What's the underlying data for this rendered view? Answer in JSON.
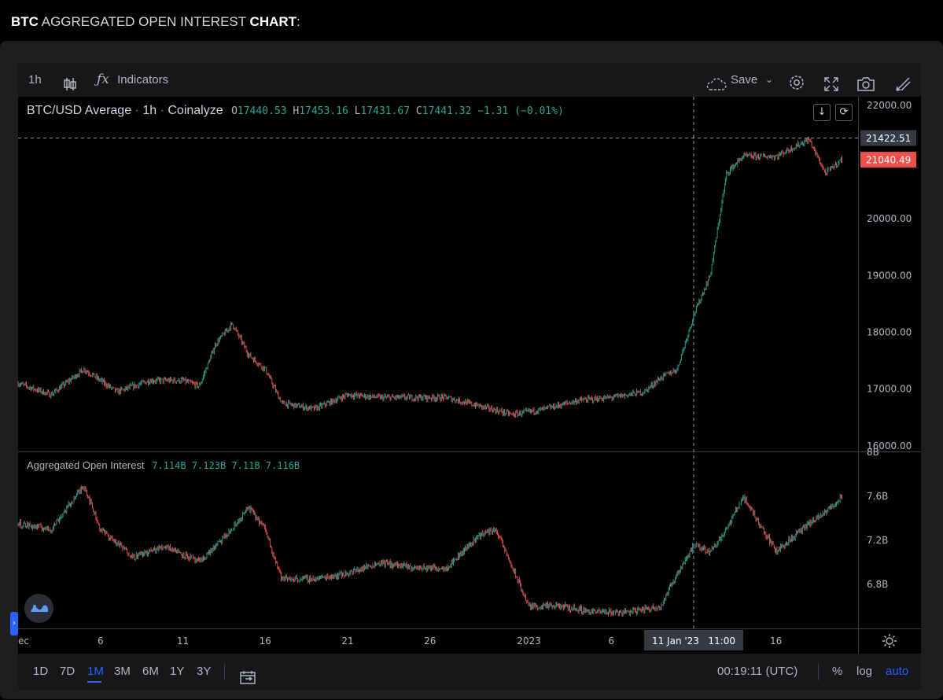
{
  "heading": {
    "part1": "BTC",
    "part2": " AGGREGATED OPEN INTEREST ",
    "part3": "CHART",
    "part4": ":"
  },
  "toolbar": {
    "interval": "1h",
    "indicators_label": "Indicators",
    "save_label": "Save"
  },
  "legend": {
    "symbol": "BTC/USD Average",
    "interval": "1h",
    "source": "Coinalyze",
    "o_label": "O",
    "o": "17440.53",
    "h_label": "H",
    "h": "17453.16",
    "l_label": "L",
    "l": "17431.67",
    "c_label": "C",
    "c": "17441.32",
    "change": "−1.31 (−0.01%)"
  },
  "oi_legend": {
    "name": "Aggregated Open Interest",
    "v1": "7.114B",
    "v2": "7.123B",
    "v3": "7.11B",
    "v4": "7.116B"
  },
  "crosshair": {
    "price": "21422.51",
    "time": "11 Jan '23   11:00"
  },
  "last_price": {
    "value": "21040.49",
    "color": "#f0504a"
  },
  "colors": {
    "up": "#26a69a",
    "down": "#ef5350",
    "background": "#000000",
    "grid": "#2a2e39"
  },
  "bottombar": {
    "ranges": [
      "1D",
      "7D",
      "1M",
      "3M",
      "6M",
      "1Y",
      "3Y"
    ],
    "active_range": "1M",
    "clock": "00:19:11 (UTC)",
    "percent": "%",
    "log": "log",
    "auto": "auto"
  },
  "chart_data": [
    {
      "type": "candlestick",
      "title": "BTC/USD Average · 1h · Coinalyze",
      "x_ticks": [
        "ec",
        "6",
        "11",
        "16",
        "21",
        "26",
        "2023",
        "6",
        "16"
      ],
      "y_ticks": [
        "22000.00",
        "20000.00",
        "19000.00",
        "18000.00",
        "17000.00",
        "16000.00"
      ],
      "ylim": [
        15900,
        22150
      ],
      "series": [
        {
          "x": [
            "Dec 1",
            "Dec 3",
            "Dec 5",
            "Dec 7",
            "Dec 9",
            "Dec 11",
            "Dec 12",
            "Dec 13",
            "Dec 14",
            "Dec 15",
            "Dec 16",
            "Dec 17",
            "Dec 19",
            "Dec 21",
            "Dec 23",
            "Dec 25",
            "Dec 27",
            "Dec 29",
            "Dec 31",
            "Jan 2",
            "Jan 4",
            "Jan 6",
            "Jan 8",
            "Jan 9",
            "Jan 10",
            "Jan 11",
            "Jan 12",
            "Jan 13",
            "Jan 14",
            "Jan 16",
            "Jan 18",
            "Jan 19",
            "Jan 20"
          ],
          "values": [
            17100,
            16900,
            17350,
            16950,
            17150,
            17150,
            17050,
            17800,
            18150,
            17600,
            17350,
            16750,
            16650,
            16900,
            16850,
            16850,
            16850,
            16700,
            16550,
            16650,
            16800,
            16850,
            16950,
            17200,
            17350,
            18300,
            19000,
            20800,
            21100,
            21100,
            21400,
            20800,
            21050
          ]
        }
      ]
    },
    {
      "type": "line",
      "title": "Aggregated Open Interest",
      "y_ticks": [
        "8B",
        "7.6B",
        "7.2B",
        "6.8B"
      ],
      "ylim": [
        6.4,
        8.0
      ],
      "series": [
        {
          "name": "Aggregated Open Interest",
          "x": [
            "Dec 1",
            "Dec 3",
            "Dec 5",
            "Dec 6",
            "Dec 8",
            "Dec 10",
            "Dec 12",
            "Dec 14",
            "Dec 15",
            "Dec 16",
            "Dec 17",
            "Dec 19",
            "Dec 21",
            "Dec 23",
            "Dec 25",
            "Dec 27",
            "Dec 29",
            "Dec 30",
            "Jan 1",
            "Jan 3",
            "Jan 5",
            "Jan 7",
            "Jan 9",
            "Jan 10",
            "Jan 11",
            "Jan 12",
            "Jan 13",
            "Jan 14",
            "Jan 16",
            "Jan 18",
            "Jan 19",
            "Jan 20"
          ],
          "values": [
            7.35,
            7.3,
            7.7,
            7.3,
            7.05,
            7.15,
            7.0,
            7.3,
            7.5,
            7.3,
            6.85,
            6.85,
            6.9,
            7.0,
            6.95,
            6.95,
            7.25,
            7.3,
            6.6,
            6.6,
            6.55,
            6.55,
            6.6,
            6.9,
            7.15,
            7.1,
            7.3,
            7.6,
            7.1,
            7.35,
            7.45,
            7.6
          ]
        }
      ]
    }
  ]
}
